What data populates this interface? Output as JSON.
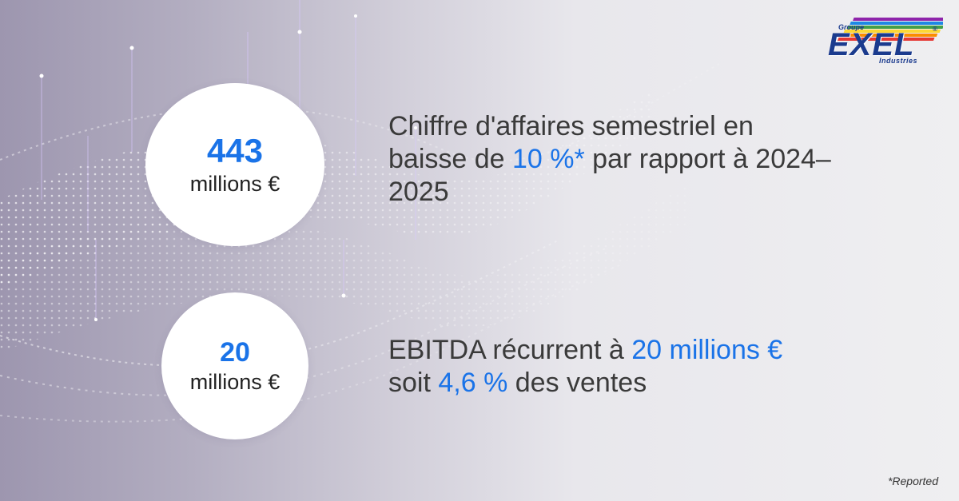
{
  "logo": {
    "groupe": "Groupe",
    "name": "EXEL",
    "industries": "Industries",
    "registered": "®",
    "colors": [
      "#1b3b8e",
      "#e53935",
      "#fb8c00",
      "#fdd835",
      "#43a047",
      "#1e88e5",
      "#8e24aa"
    ]
  },
  "stats": [
    {
      "value": "443",
      "unit": "millions €",
      "text_before": "Chiffre d'affaires semestriel en baisse de ",
      "highlight": "10 %*",
      "text_after": " par rapport à 2024–2025"
    },
    {
      "value": "20",
      "unit": "millions €",
      "text_before": "EBITDA récurrent à ",
      "highlight": "20 millions €",
      "text_middle": " soit ",
      "highlight2": "4,6 %",
      "text_after": " des ventes"
    }
  ],
  "footnote": "*Reported",
  "colors": {
    "accent": "#1a73e8",
    "text": "#3a3a3a",
    "logo_blue": "#1b3b8e"
  }
}
